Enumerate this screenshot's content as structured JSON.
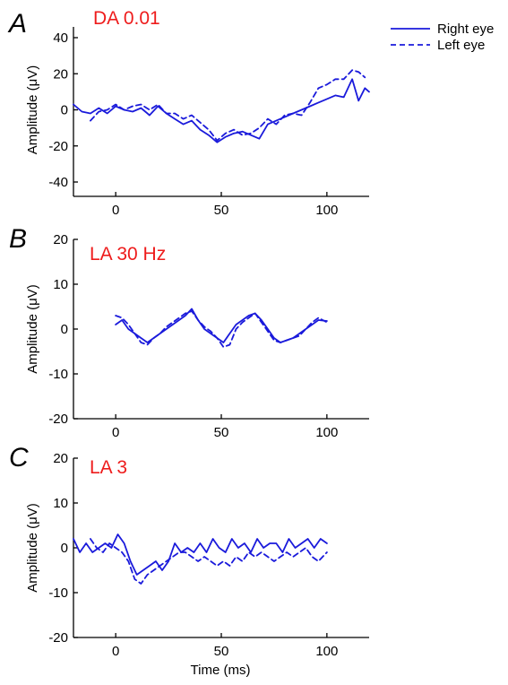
{
  "legend": {
    "right": "Right eye",
    "left": "Left eye"
  },
  "xlabel": "Time (ms)",
  "colors": {
    "series": "#1a1adb",
    "condition": "#ee1c1c"
  },
  "chart_data": [
    {
      "type": "line",
      "panel": "A",
      "title": "DA 0.01",
      "ylabel": "Amplitude (μV)",
      "xlim": [
        -20,
        120
      ],
      "ylim": [
        -50,
        50
      ],
      "xticks": [
        0,
        50,
        100
      ],
      "yticks": [
        -40,
        -20,
        0,
        20,
        40
      ],
      "series": [
        {
          "name": "Right eye",
          "style": "solid",
          "x": [
            -20,
            -16,
            -12,
            -8,
            -4,
            0,
            4,
            8,
            12,
            16,
            20,
            24,
            28,
            32,
            36,
            40,
            44,
            48,
            52,
            56,
            60,
            64,
            68,
            72,
            76,
            80,
            84,
            88,
            92,
            96,
            100,
            104,
            108,
            112,
            115,
            118,
            120
          ],
          "y": [
            3,
            -1,
            -2,
            1,
            -2,
            2,
            0,
            -1,
            1,
            -3,
            2,
            -2,
            -5,
            -8,
            -6,
            -11,
            -14,
            -18,
            -15,
            -13,
            -12,
            -14,
            -16,
            -8,
            -6,
            -4,
            -2,
            0,
            2,
            4,
            6,
            8,
            7,
            17,
            5,
            12,
            10
          ]
        },
        {
          "name": "Left eye",
          "style": "dashed",
          "x": [
            -12,
            -8,
            -4,
            0,
            4,
            8,
            12,
            16,
            20,
            24,
            28,
            32,
            36,
            40,
            44,
            48,
            52,
            56,
            60,
            64,
            68,
            72,
            76,
            80,
            84,
            88,
            92,
            96,
            100,
            104,
            108,
            112,
            115,
            118
          ],
          "y": [
            -6,
            -1,
            0,
            3,
            0,
            2,
            3,
            0,
            3,
            -2,
            -2,
            -5,
            -3,
            -7,
            -11,
            -17,
            -13,
            -11,
            -14,
            -13,
            -10,
            -5,
            -8,
            -3,
            -2,
            -3,
            4,
            12,
            14,
            17,
            17,
            22,
            21,
            18
          ]
        }
      ]
    },
    {
      "type": "line",
      "panel": "B",
      "title": "LA 30 Hz",
      "ylabel": "Amplitude (μV)",
      "xlim": [
        -20,
        120
      ],
      "ylim": [
        -20,
        20
      ],
      "xticks": [
        0,
        50,
        100
      ],
      "yticks": [
        -20,
        -10,
        0,
        10,
        20
      ],
      "series": [
        {
          "name": "Right eye",
          "style": "solid",
          "x": [
            0,
            3,
            6,
            9,
            12,
            15,
            18,
            21,
            24,
            27,
            30,
            33,
            36,
            39,
            42,
            45,
            48,
            51,
            54,
            57,
            60,
            63,
            66,
            69,
            72,
            75,
            78,
            81,
            84,
            87,
            90,
            93,
            96,
            100
          ],
          "y": [
            1,
            2,
            0,
            -1,
            -2,
            -3,
            -2,
            -1,
            0,
            1,
            2,
            3,
            4.5,
            2,
            0,
            -1,
            -2,
            -3,
            -1,
            1,
            2,
            3,
            3.5,
            2,
            0,
            -2,
            -3,
            -2.5,
            -2,
            -1,
            0,
            1,
            2,
            1.8
          ]
        },
        {
          "name": "Left eye",
          "style": "dashed",
          "x": [
            0,
            3,
            6,
            9,
            12,
            15,
            18,
            21,
            24,
            27,
            30,
            33,
            36,
            39,
            42,
            45,
            48,
            51,
            54,
            57,
            60,
            63,
            66,
            69,
            72,
            75,
            78,
            81,
            84,
            87,
            90,
            93,
            96,
            100
          ],
          "y": [
            3,
            2.5,
            1,
            -1,
            -3,
            -3.5,
            -2,
            -1,
            0.5,
            1.5,
            2.5,
            3.5,
            4,
            2,
            0.5,
            -0.5,
            -2,
            -4,
            -3.5,
            0,
            1.5,
            2.5,
            3.5,
            1.5,
            -0.5,
            -2.5,
            -3,
            -2.5,
            -2,
            -1.5,
            0,
            1.5,
            2.5,
            1.5
          ]
        }
      ]
    },
    {
      "type": "line",
      "panel": "C",
      "title": "LA 3",
      "ylabel": "Amplitude (μV)",
      "xlim": [
        -20,
        120
      ],
      "ylim": [
        -20,
        20
      ],
      "xticks": [
        0,
        50,
        100
      ],
      "yticks": [
        -20,
        -10,
        0,
        10,
        20
      ],
      "series": [
        {
          "name": "Right eye",
          "style": "solid",
          "x": [
            -20,
            -17,
            -14,
            -11,
            -8,
            -5,
            -2,
            1,
            4,
            7,
            10,
            13,
            16,
            19,
            22,
            25,
            28,
            31,
            34,
            37,
            40,
            43,
            46,
            49,
            52,
            55,
            58,
            61,
            64,
            67,
            70,
            73,
            76,
            79,
            82,
            85,
            88,
            91,
            94,
            97,
            100
          ],
          "y": [
            2,
            -1,
            1,
            -1,
            0,
            1,
            0,
            3,
            1,
            -3,
            -6,
            -5,
            -4,
            -3,
            -5,
            -3,
            1,
            -1,
            0,
            -1,
            1,
            -1,
            2,
            0,
            -1,
            2,
            0,
            1,
            -1,
            2,
            0,
            1,
            1,
            -1,
            2,
            0,
            1,
            2,
            0,
            2,
            1
          ]
        },
        {
          "name": "Left eye",
          "style": "dashed",
          "x": [
            -12,
            -9,
            -6,
            -3,
            0,
            3,
            6,
            9,
            12,
            15,
            18,
            21,
            24,
            27,
            30,
            33,
            36,
            39,
            42,
            45,
            48,
            51,
            54,
            57,
            60,
            63,
            66,
            69,
            72,
            75,
            78,
            81,
            84,
            87,
            90,
            93,
            96,
            100
          ],
          "y": [
            2,
            0,
            -1,
            1,
            0,
            -1,
            -3,
            -7,
            -8,
            -6,
            -5,
            -4,
            -3,
            -2,
            -1,
            -1,
            -2,
            -3,
            -2,
            -3,
            -4,
            -3,
            -4,
            -2,
            -3,
            -1,
            -2,
            -1,
            -2,
            -3,
            -2,
            -1,
            -2,
            -1,
            0,
            -2,
            -3,
            -1
          ]
        }
      ]
    }
  ]
}
